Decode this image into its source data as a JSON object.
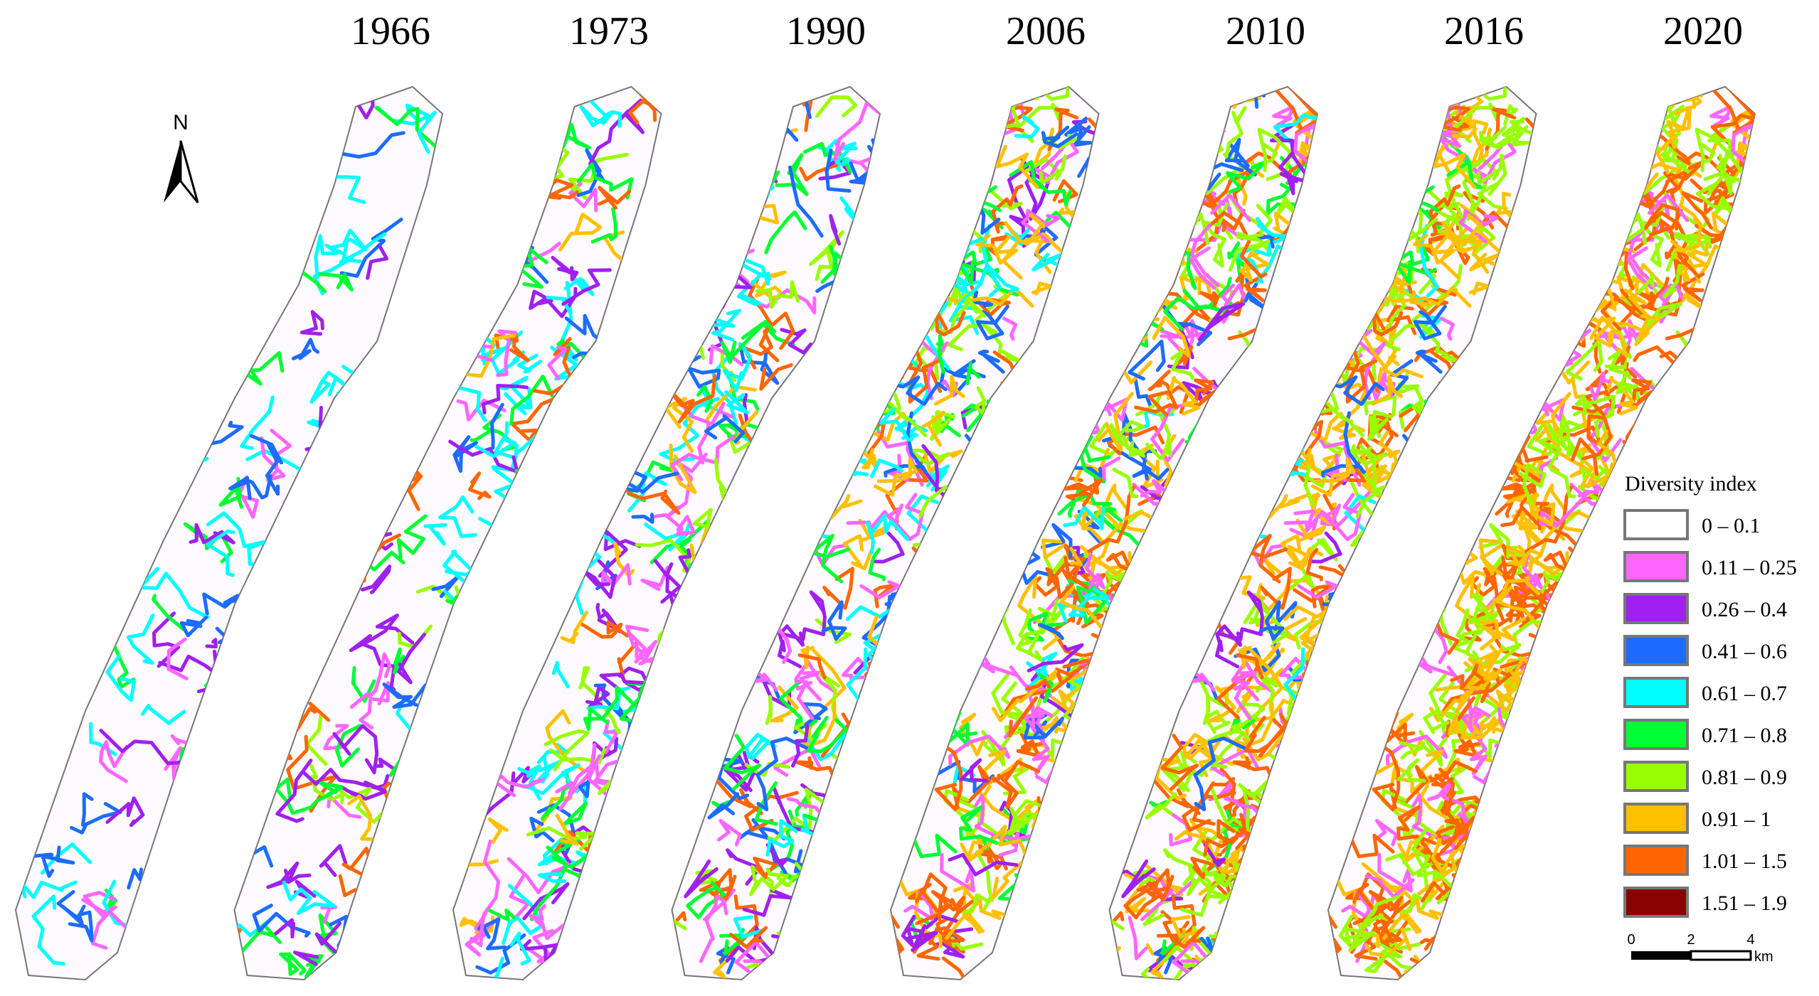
{
  "panels": [
    {
      "year": "1966"
    },
    {
      "year": "1973"
    },
    {
      "year": "1990"
    },
    {
      "year": "2006"
    },
    {
      "year": "2010"
    },
    {
      "year": "2016"
    },
    {
      "year": "2020"
    }
  ],
  "north_arrow": "N",
  "legend": {
    "title": "Diversity index",
    "items": [
      {
        "label": "0 – 0.1",
        "color": "#ffffff"
      },
      {
        "label": "0.11 – 0.25",
        "color": "#ff66ff"
      },
      {
        "label": "0.26 – 0.4",
        "color": "#a020f0"
      },
      {
        "label": "0.41 – 0.6",
        "color": "#1e6cff"
      },
      {
        "label": "0.61 – 0.7",
        "color": "#00ffff"
      },
      {
        "label": "0.71 – 0.8",
        "color": "#00ff33"
      },
      {
        "label": "0.81 – 0.9",
        "color": "#99ff00"
      },
      {
        "label": "0.91 – 1",
        "color": "#ffc000"
      },
      {
        "label": "1.01 – 1.5",
        "color": "#ff6600"
      },
      {
        "label": "1.51 – 1.9",
        "color": "#8b0000"
      }
    ]
  },
  "scale_bar": {
    "labels": [
      "0",
      "2",
      "4"
    ],
    "unit": "km"
  }
}
